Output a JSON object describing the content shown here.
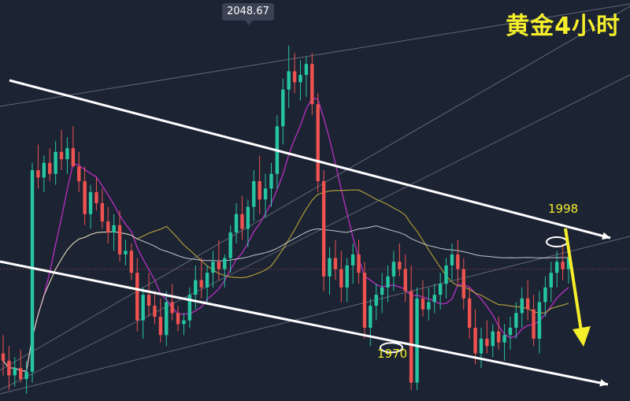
{
  "title": "黄金4小时",
  "peak_label": "2048.67",
  "annotations": {
    "high_level": "1998",
    "low_level": "1970"
  },
  "colors": {
    "background": "#1c2333",
    "bull": "#26c6a3",
    "bear": "#ef5350",
    "ma_fast": "#c030c8",
    "ma_slow": "#c9b23a",
    "ma_long": "#d8d8d8",
    "trendline": "#ffffff",
    "arrow": "#f5ee2a",
    "title": "#f5ee2a"
  },
  "chart_data": {
    "type": "candlestick",
    "symbol": "XAUUSD",
    "timeframe": "4H",
    "ylim": [
      1955,
      2058
    ],
    "candles": [
      [
        1968,
        1973,
        1962,
        1966
      ],
      [
        1966,
        1970,
        1958,
        1962
      ],
      [
        1962,
        1967,
        1959,
        1964
      ],
      [
        1964,
        1969,
        1960,
        1961
      ],
      [
        1961,
        1966,
        1957,
        1963
      ],
      [
        1963,
        2020,
        1960,
        2018
      ],
      [
        2018,
        2025,
        2013,
        2016
      ],
      [
        2016,
        2022,
        2012,
        2020
      ],
      [
        2020,
        2024,
        2015,
        2017
      ],
      [
        2017,
        2026,
        2014,
        2023
      ],
      [
        2023,
        2029,
        2018,
        2021
      ],
      [
        2021,
        2027,
        2017,
        2024
      ],
      [
        2024,
        2030,
        2020,
        2019
      ],
      [
        2019,
        2023,
        2012,
        2015
      ],
      [
        2015,
        2019,
        2003,
        2006
      ],
      [
        2006,
        2014,
        2002,
        2012
      ],
      [
        2012,
        2016,
        2007,
        2009
      ],
      [
        2009,
        2013,
        2002,
        2004
      ],
      [
        2004,
        2008,
        1998,
        2001
      ],
      [
        2001,
        2006,
        1996,
        2003
      ],
      [
        2003,
        2007,
        1993,
        1995
      ],
      [
        1995,
        1999,
        1992,
        1996
      ],
      [
        1996,
        1998,
        1988,
        1990
      ],
      [
        1990,
        1994,
        1974,
        1977
      ],
      [
        1977,
        1986,
        1972,
        1984
      ],
      [
        1984,
        1990,
        1978,
        1981
      ],
      [
        1981,
        1985,
        1976,
        1978
      ],
      [
        1978,
        1983,
        1971,
        1973
      ],
      [
        1973,
        1985,
        1970,
        1982
      ],
      [
        1982,
        1987,
        1977,
        1979
      ],
      [
        1979,
        1981,
        1974,
        1976
      ],
      [
        1976,
        1979,
        1973,
        1977
      ],
      [
        1977,
        1986,
        1975,
        1984
      ],
      [
        1984,
        1992,
        1980,
        1988
      ],
      [
        1988,
        1994,
        1983,
        1986
      ],
      [
        1986,
        1992,
        1982,
        1990
      ],
      [
        1990,
        1996,
        1986,
        1993
      ],
      [
        1993,
        1999,
        1988,
        1991
      ],
      [
        1991,
        1995,
        1986,
        1994
      ],
      [
        1994,
        2003,
        1990,
        2001
      ],
      [
        2001,
        2009,
        1998,
        2006
      ],
      [
        2006,
        2011,
        1999,
        2002
      ],
      [
        2002,
        2010,
        1997,
        2008
      ],
      [
        2008,
        2018,
        2004,
        2015
      ],
      [
        2015,
        2022,
        2006,
        2010
      ],
      [
        2010,
        2017,
        2005,
        2013
      ],
      [
        2013,
        2020,
        2008,
        2017
      ],
      [
        2017,
        2033,
        2013,
        2030
      ],
      [
        2030,
        2043,
        2025,
        2040
      ],
      [
        2040,
        2052,
        2035,
        2045
      ],
      [
        2045,
        2050,
        2039,
        2042
      ],
      [
        2042,
        2048,
        2037,
        2044
      ],
      [
        2044,
        2049,
        2038,
        2047
      ],
      [
        2047,
        2050,
        2033,
        2036
      ],
      [
        2036,
        2039,
        2012,
        2015
      ],
      [
        2015,
        2018,
        1985,
        1989
      ],
      [
        1989,
        1997,
        1984,
        1994
      ],
      [
        1994,
        1999,
        1988,
        1991
      ],
      [
        1991,
        1996,
        1982,
        1986
      ],
      [
        1986,
        1994,
        1982,
        1992
      ],
      [
        1992,
        1998,
        1987,
        1995
      ],
      [
        1995,
        1999,
        1987,
        1990
      ],
      [
        1990,
        1993,
        1972,
        1975
      ],
      [
        1975,
        1983,
        1970,
        1981
      ],
      [
        1981,
        1987,
        1977,
        1984
      ],
      [
        1984,
        1990,
        1979,
        1986
      ],
      [
        1986,
        1992,
        1982,
        1989
      ],
      [
        1989,
        1996,
        1985,
        1993
      ],
      [
        1993,
        1998,
        1989,
        1991
      ],
      [
        1991,
        1995,
        1982,
        1985
      ],
      [
        1985,
        1992,
        1958,
        1960
      ],
      [
        1960,
        1986,
        1958,
        1983
      ],
      [
        1983,
        1988,
        1978,
        1980
      ],
      [
        1980,
        1986,
        1977,
        1982
      ],
      [
        1982,
        1987,
        1979,
        1984
      ],
      [
        1984,
        1990,
        1980,
        1987
      ],
      [
        1987,
        1994,
        1983,
        1992
      ],
      [
        1992,
        1998,
        1988,
        1995
      ],
      [
        1995,
        1999,
        1987,
        1991
      ],
      [
        1991,
        1994,
        1980,
        1983
      ],
      [
        1983,
        1986,
        1972,
        1975
      ],
      [
        1975,
        1980,
        1965,
        1968
      ],
      [
        1968,
        1975,
        1964,
        1972
      ],
      [
        1972,
        1977,
        1968,
        1970
      ],
      [
        1970,
        1976,
        1967,
        1974
      ],
      [
        1974,
        1978,
        1969,
        1971
      ],
      [
        1971,
        1976,
        1966,
        1973
      ],
      [
        1973,
        1978,
        1969,
        1975
      ],
      [
        1975,
        1982,
        1972,
        1979
      ],
      [
        1979,
        1986,
        1975,
        1983
      ],
      [
        1983,
        1988,
        1977,
        1980
      ],
      [
        1980,
        1984,
        1970,
        1972
      ],
      [
        1972,
        1985,
        1968,
        1982
      ],
      [
        1982,
        1989,
        1978,
        1986
      ],
      [
        1986,
        1993,
        1982,
        1990
      ],
      [
        1990,
        1996,
        1986,
        1993
      ],
      [
        1993,
        1998,
        1988,
        1991
      ],
      [
        1991,
        1996,
        1987,
        1994
      ]
    ],
    "levels": [
      {
        "label": "1998",
        "value": 1998
      },
      {
        "label": "1970",
        "value": 1970
      }
    ],
    "peak": 2048.67,
    "horizontal_line": 1991
  }
}
